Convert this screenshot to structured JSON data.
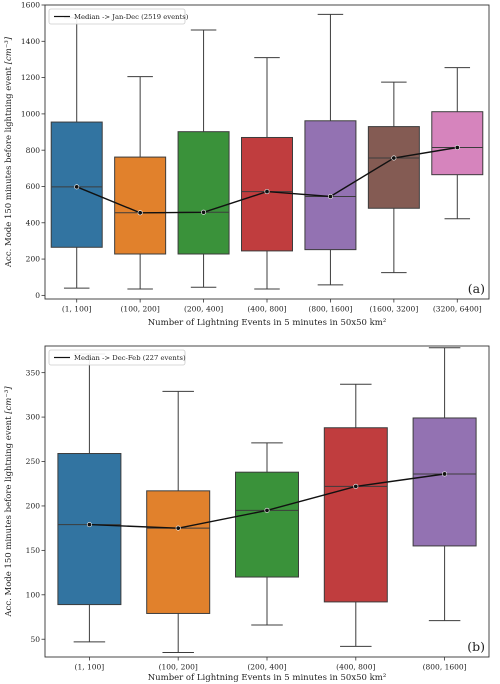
{
  "chart_data": [
    {
      "type": "box",
      "panel_label": "(a)",
      "xlabel": "Number of Lightning Events in 5 minutes in 50x50 km²",
      "ylabel": "Acc. Mode 150 minutes before lightning event",
      "ylabel_unit": "[cm⁻³]",
      "ylim": [
        -20,
        1600
      ],
      "yticks": [
        0,
        200,
        400,
        600,
        800,
        1000,
        1200,
        1400,
        1600
      ],
      "legend": {
        "label": "Median -> Jan-Dec (2519 events)",
        "position": "top-left"
      },
      "categories": [
        "(1, 100]",
        "(100, 200]",
        "(200, 400]",
        "(400, 800]",
        "(800, 1600]",
        "(1600, 3200]",
        "(3200, 6400]"
      ],
      "colors": [
        "#3274a1",
        "#e1812c",
        "#3a923a",
        "#c03d3e",
        "#9372b2",
        "#845b53",
        "#d684bd"
      ],
      "boxes": [
        {
          "whisker_low": 40,
          "q1": 265,
          "median": 598,
          "q3": 955,
          "whisker_high": 1530
        },
        {
          "whisker_low": 35,
          "q1": 228,
          "median": 455,
          "q3": 762,
          "whisker_high": 1205
        },
        {
          "whisker_low": 45,
          "q1": 228,
          "median": 458,
          "q3": 902,
          "whisker_high": 1462
        },
        {
          "whisker_low": 35,
          "q1": 245,
          "median": 572,
          "q3": 870,
          "whisker_high": 1310
        },
        {
          "whisker_low": 58,
          "q1": 252,
          "median": 545,
          "q3": 962,
          "whisker_high": 1548
        },
        {
          "whisker_low": 125,
          "q1": 480,
          "median": 757,
          "q3": 930,
          "whisker_high": 1175
        },
        {
          "whisker_low": 422,
          "q1": 665,
          "median": 815,
          "q3": 1012,
          "whisker_high": 1255
        }
      ],
      "median_line": [
        598,
        455,
        458,
        572,
        545,
        757,
        815
      ]
    },
    {
      "type": "box",
      "panel_label": "(b)",
      "xlabel": "Number of Lightning Events in 5 minutes in 50x50 km²",
      "ylabel": "Acc. Mode 150 minutes before lightning event",
      "ylabel_unit": "[cm⁻³]",
      "ylim": [
        30,
        380
      ],
      "yticks": [
        50,
        100,
        150,
        200,
        250,
        300,
        350
      ],
      "legend": {
        "label": "Median -> Dec-Feb (227 events)",
        "position": "top-left"
      },
      "categories": [
        "(1, 100]",
        "(100, 200]",
        "(200, 400]",
        "(400, 800]",
        "(800, 1600]"
      ],
      "colors": [
        "#3274a1",
        "#e1812c",
        "#3a923a",
        "#c03d3e",
        "#9372b2"
      ],
      "boxes": [
        {
          "whisker_low": 47,
          "q1": 89,
          "median": 179,
          "q3": 259,
          "whisker_high": 371
        },
        {
          "whisker_low": 35,
          "q1": 79,
          "median": 175,
          "q3": 217,
          "whisker_high": 329
        },
        {
          "whisker_low": 66,
          "q1": 120,
          "median": 195,
          "q3": 238,
          "whisker_high": 271
        },
        {
          "whisker_low": 42,
          "q1": 92,
          "median": 222,
          "q3": 288,
          "whisker_high": 337
        },
        {
          "whisker_low": 71,
          "q1": 155,
          "median": 236,
          "q3": 299,
          "whisker_high": 378
        }
      ],
      "median_line": [
        179,
        175,
        195,
        222,
        236
      ]
    }
  ]
}
